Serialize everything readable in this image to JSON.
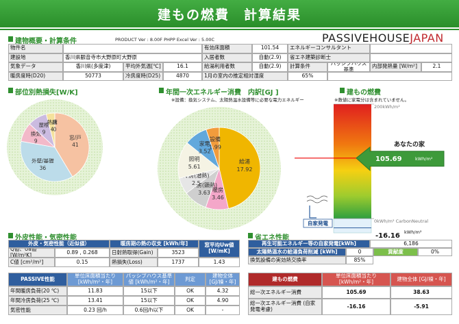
{
  "header": {
    "title": "建もの燃費　計算結果"
  },
  "overview": {
    "title": "建物概要・計算条件",
    "version": "PRODUCT Ver : 8.00F  PHPP Excel Ver : 5.00C",
    "logo_a": "PASSIVEHOUSE",
    "logo_b": "JAPAN",
    "rows": [
      [
        "物件名",
        "有効床面積",
        101.54,
        "エネルギーコンサルタント"
      ],
      [
        "建設地",
        "香川県観音寺市大野原町大野原",
        "入居者数",
        "自動(2.9)",
        "省エネ建築診断士"
      ],
      [
        "気象データ",
        "香川県(多度津)",
        "平均外気温[℃]",
        16.1,
        "給湯利用者数",
        "自動(2.9)",
        "計算条件",
        "パッシブハウス基準",
        "内部発熱量 [W/m²]",
        2.1
      ],
      [
        "暖房度時(D20)",
        50773,
        "冷房度時(D25)",
        4870,
        "1月の室内の推定相対湿度",
        "65%"
      ]
    ]
  },
  "heat_loss": {
    "title": "部位別熱損失[W/K]",
    "slices": [
      {
        "name": "窓/戸",
        "value": 41,
        "color": "#f6c2a2"
      },
      {
        "name": "外壁/基礎",
        "value": 36,
        "color": "#bcdcea"
      },
      {
        "name": "換気",
        "value": 9,
        "color": "#f3b9c9"
      },
      {
        "name": "屋根",
        "value": 9,
        "color": "#cbbbe0"
      },
      {
        "name": "熱橋",
        "value": 4,
        "color": "#f5e29c"
      },
      {
        "name": "床",
        "value": 0,
        "color": "#cfe6ae"
      }
    ]
  },
  "energy": {
    "title": "年間一次エネルギー消費　内訳[GJ ]",
    "note": "※設備：換気システム、太陽熱温水設備等に必要な電力エネルギー",
    "slices": [
      {
        "name": "給湯",
        "value": 17.92,
        "color": "#f0b600"
      },
      {
        "name": "暖房",
        "value": 3.46,
        "color": "#f4a7c9"
      },
      {
        "name": "冷房(顕熱)",
        "value": 3.63,
        "color": "#cfcfcf"
      },
      {
        "name": "冷房(潜熱)",
        "value": 2.5,
        "color": "#e6e6e6"
      },
      {
        "name": "照明",
        "value": 5.61,
        "color": "#f5f3e4"
      },
      {
        "name": "家電",
        "value": 3.52,
        "color": "#62a8dc"
      },
      {
        "name": "設備",
        "value": 1.99,
        "color": "#f29c3c"
      }
    ]
  },
  "fuel": {
    "title": "建もの燃費",
    "note": "※数値に家電分は含まれていません。",
    "ylim": [
      -25,
      200
    ],
    "ticks": [
      {
        "value": 200,
        "label": "200kWh/m²"
      },
      {
        "value": 0,
        "label": "0kWh/m² CarbonNeutral"
      }
    ],
    "house_label": "あなたの家",
    "value": 105.69,
    "value_unit": "kWh/m²",
    "self_gen_label": "自家発電",
    "self_gen_value": -16.16,
    "self_gen_unit": "kWh/m²"
  },
  "envelope": {
    "title": "外皮性能・気密性能",
    "headers": [
      "外皮・気密性能（近似値）",
      "暖房期の熱の収支 [kWh/年]",
      "窓平均Uw値 [W/mK]"
    ],
    "rows": [
      [
        "Q値、Ua値 [W/m²K]",
        "0.89 , 0.268",
        "日射熱取得(Gain)",
        3523
      ],
      [
        "C値 [cm²/m²]",
        0.15,
        "熱損失(Loss)",
        1737,
        1.43
      ]
    ]
  },
  "passive": {
    "headers": [
      "PASSIVE性能",
      "単位床面積当たり [kWh/m²・年]",
      "パッシブハウス基準値 [kWh/m²・年]",
      "判定",
      "建物全体 [GJ/棟・年]"
    ],
    "rows": [
      [
        "年間暖房負荷(20 ℃)",
        11.83,
        "15以下",
        "OK",
        4.32
      ],
      [
        "年間冷房負荷(25 ℃)",
        13.41,
        "15以下",
        "OK",
        "4.90"
      ],
      [
        "気密性能",
        "0.23 回/h",
        "0.6回/h以下",
        "OK",
        "-"
      ]
    ]
  },
  "saving": {
    "title": "省エネ性能",
    "rows": [
      [
        "再生可能エネルギー等の自家発電[kWh]",
        "6,186"
      ],
      [
        "太陽熱温水の給湯負荷削減 [kWh]",
        0,
        "貢献度",
        "0%"
      ],
      [
        "換気設備の実効熱交換率",
        "85%"
      ]
    ]
  },
  "fuel_table": {
    "headers": [
      "建もの燃費",
      "単位床面積当たり [kWh/m²・年]",
      "建物全体 [GJ/棟・年]"
    ],
    "rows": [
      [
        "総一次エネルギー消費",
        105.69,
        38.63
      ],
      [
        "総一次エネルギー消費 (自家発電考慮)",
        -16.16,
        -5.91
      ]
    ]
  }
}
